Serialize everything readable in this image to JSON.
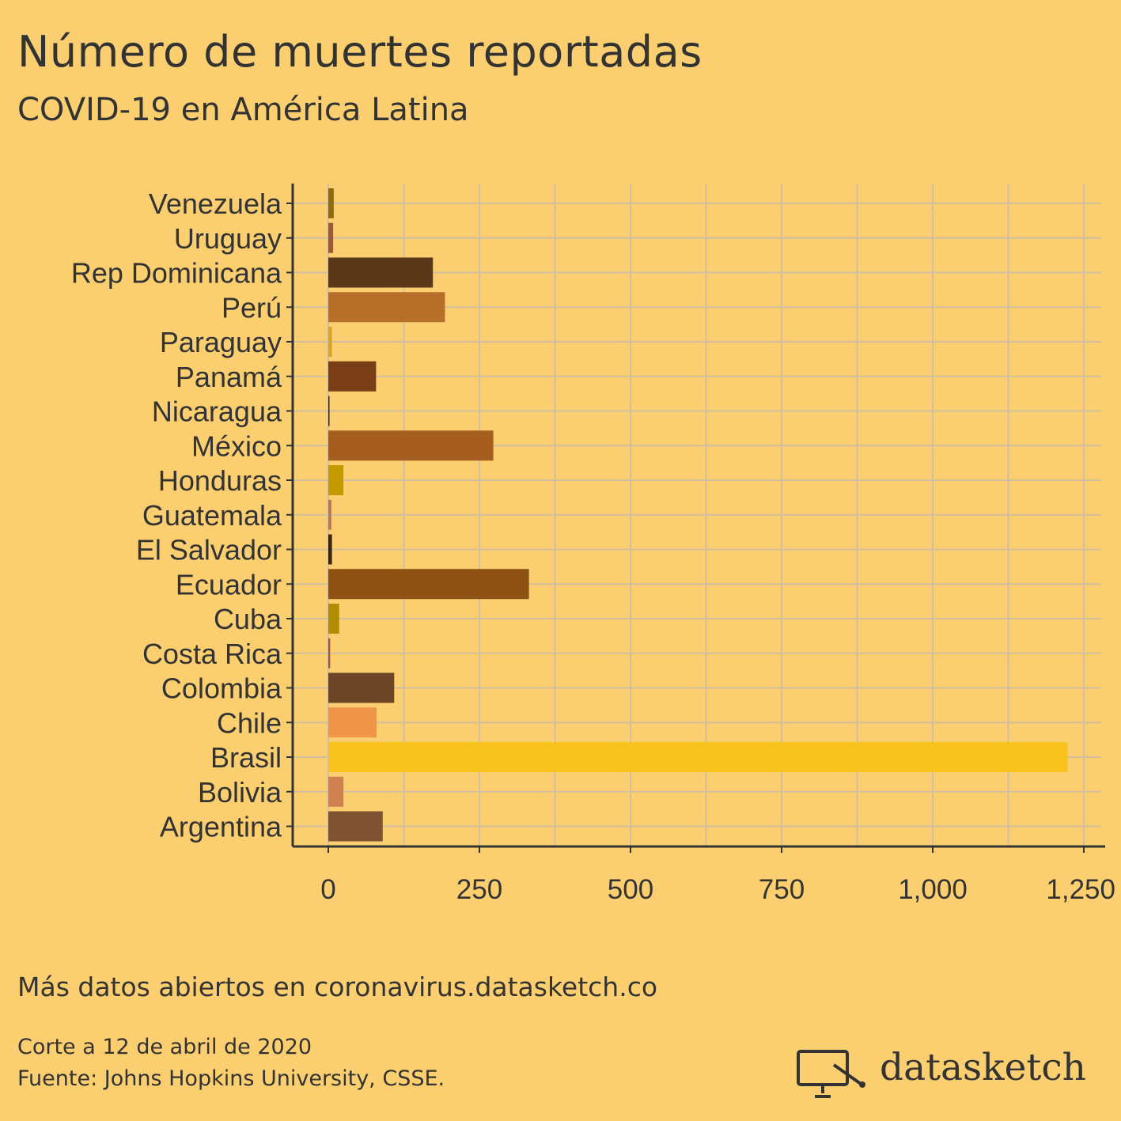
{
  "title": "Número de muertes reportadas",
  "subtitle": "COVID-19 en América Latina",
  "more_data": "Más datos abiertos en coronavirus.datasketch.co",
  "cutoff": "Corte a 12 de abril de 2020",
  "source": "Fuente: Johns Hopkins University, CSSE.",
  "logo": {
    "text": "datasketch",
    "icon": "monitor-pointer-icon"
  },
  "colors": {
    "background": "#FBCF6F",
    "grid": "#D3BFA0",
    "axis": "#333333"
  },
  "chart_data": {
    "type": "bar",
    "orientation": "horizontal",
    "title": "Número de muertes reportadas",
    "subtitle": "COVID-19 en América Latina",
    "xlabel": "",
    "ylabel": "",
    "xlim": [
      -45,
      1280
    ],
    "x_ticks": [
      0,
      250,
      500,
      750,
      1000,
      1250
    ],
    "x_tick_labels": [
      "0",
      "250",
      "500",
      "750",
      "1,000",
      "1,250"
    ],
    "grid": true,
    "legend": "none",
    "categories": [
      "Venezuela",
      "Uruguay",
      "Rep Dominicana",
      "Perú",
      "Paraguay",
      "Panamá",
      "Nicaragua",
      "México",
      "Honduras",
      "Guatemala",
      "El Salvador",
      "Ecuador",
      "Cuba",
      "Costa Rica",
      "Colombia",
      "Chile",
      "Brasil",
      "Bolivia",
      "Argentina"
    ],
    "values": [
      9,
      8,
      173,
      193,
      6,
      79,
      1,
      273,
      25,
      5,
      6,
      332,
      18,
      3,
      109,
      80,
      1223,
      25,
      90
    ],
    "colors": [
      "#8E6A12",
      "#9E5A30",
      "#5A3818",
      "#B86F2A",
      "#D9A520",
      "#7A3E16",
      "#3A2515",
      "#A55E20",
      "#C49A00",
      "#B87850",
      "#3A2410",
      "#8E5215",
      "#B08C00",
      "#9E5A3A",
      "#6B4525",
      "#F0964A",
      "#F9C31E",
      "#D08050",
      "#7E5232"
    ]
  }
}
